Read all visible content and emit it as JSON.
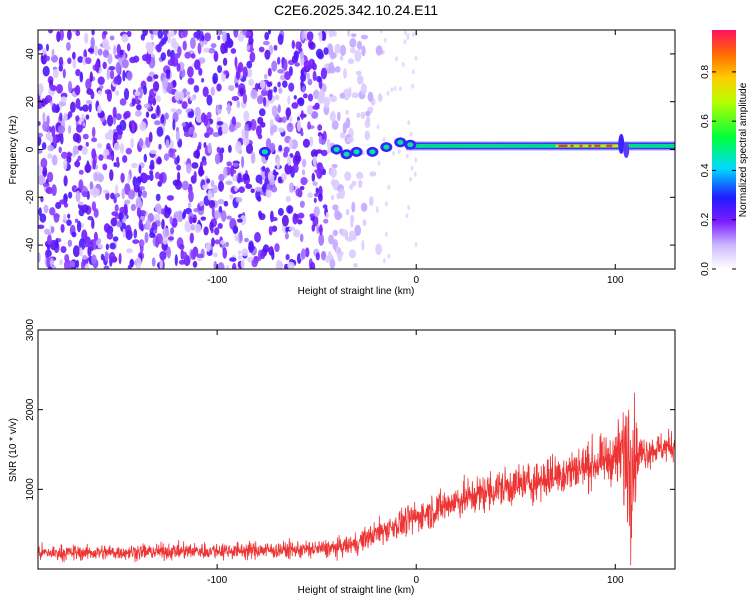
{
  "title": "C2E6.2025.342.10.24.E11",
  "chart_data": [
    {
      "type": "heatmap",
      "xlabel": "Height of straight line (km)",
      "ylabel": "Frequency (Hz)",
      "xlim": [
        -190,
        130
      ],
      "ylim": [
        -50,
        50
      ],
      "xticks": [
        -100,
        0,
        100
      ],
      "yticks": [
        -40,
        -20,
        0,
        20,
        40
      ],
      "colorbar": {
        "label": "Normalized spectral amplitude",
        "range": [
          0,
          0.97
        ],
        "ticks": [
          "0.0",
          "0.2",
          "0.4",
          "0.6",
          "0.8"
        ],
        "tick_values": [
          0,
          0.2,
          0.4,
          0.6,
          0.8
        ],
        "colormap": "rainbow (white-violet-blue-cyan-green-yellow-red)"
      },
      "features": {
        "noise_region_x": [
          -190,
          -20
        ],
        "signal_line_freq_hz": 1.5,
        "signal_line_x": [
          -90,
          130
        ],
        "strong_signal_x": [
          70,
          105
        ],
        "disturbance_x": 103
      }
    },
    {
      "type": "line",
      "xlabel": "Height of straight line (km)",
      "ylabel": "SNR (10 * v/v)",
      "xlim": [
        -190,
        130
      ],
      "ylim": [
        0,
        3000
      ],
      "xticks": [
        -100,
        0,
        100
      ],
      "yticks": [
        1000,
        2000,
        3000
      ],
      "series": [
        {
          "color": "#ee3333",
          "x": [
            -190,
            -150,
            -100,
            -60,
            -40,
            -30,
            -20,
            0,
            20,
            40,
            60,
            80,
            100,
            106,
            108,
            112,
            120,
            130
          ],
          "mean": [
            200,
            210,
            230,
            240,
            260,
            320,
            450,
            650,
            850,
            1000,
            1100,
            1250,
            1400,
            1450,
            1400,
            1450,
            1500,
            1550
          ],
          "spread": [
            150,
            150,
            160,
            170,
            180,
            200,
            250,
            300,
            350,
            380,
            400,
            430,
            450,
            1500,
            1500,
            350,
            300,
            300
          ]
        }
      ]
    }
  ]
}
